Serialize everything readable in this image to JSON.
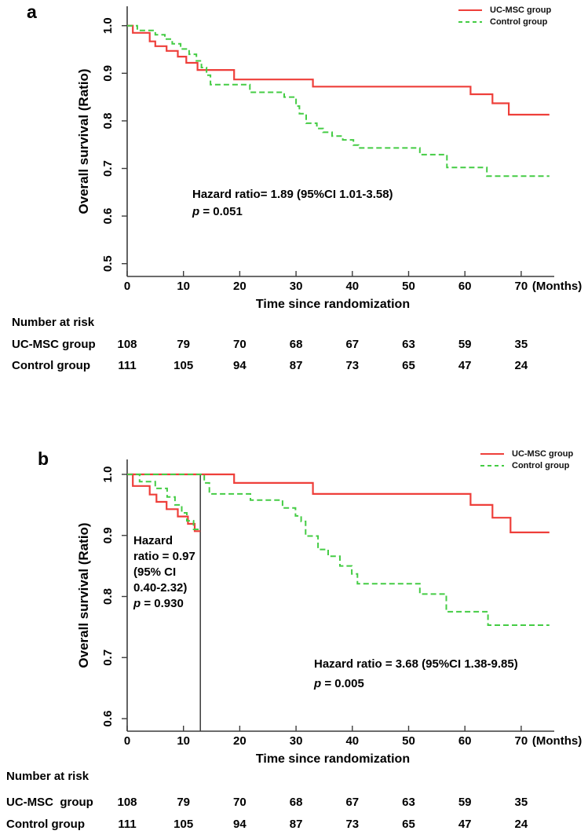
{
  "figure": {
    "background": "#ffffff",
    "red": "#ee3f3a",
    "green": "#44cc44",
    "axis_color": "#3c3c3c",
    "vline_color": "#3a3a3a",
    "text_color": "#000000"
  },
  "chart_data": [
    {
      "panel_label": "a",
      "type": "line",
      "subtype": "kaplan-meier-step",
      "xlabel": "Time since randomization",
      "xlabel_unit": "(Months)",
      "ylabel": "Overall survival (Ratio)",
      "xticks": [
        0,
        10,
        20,
        30,
        40,
        50,
        60,
        70
      ],
      "ytick_labels": [
        "1.0",
        "0.9",
        "0.8",
        "0.7",
        "0.6",
        "0.5"
      ],
      "xlim": [
        0,
        75.8
      ],
      "ylim": [
        0.47,
        1.04
      ],
      "grid": false,
      "legend": {
        "position": "top-right",
        "items": [
          {
            "label": "UC-MSC group",
            "style": "solid",
            "color": "#ee3f3a"
          },
          {
            "label": "Control group",
            "style": "dashed",
            "color": "#44cc44"
          }
        ]
      },
      "series": [
        {
          "name": "UC-MSC group",
          "style": "solid",
          "color": "#ee3f3a",
          "end": 75,
          "steps": [
            [
              0,
              1.0
            ],
            [
              1,
              0.985
            ],
            [
              4,
              0.967
            ],
            [
              5,
              0.957
            ],
            [
              7,
              0.947
            ],
            [
              9,
              0.935
            ],
            [
              10.5,
              0.922
            ],
            [
              12.5,
              0.907
            ],
            [
              19,
              0.887
            ],
            [
              33,
              0.872
            ],
            [
              61,
              0.856
            ],
            [
              64.9,
              0.837
            ],
            [
              67.8,
              0.813
            ]
          ]
        },
        {
          "name": "Control group",
          "style": "dashed",
          "color": "#44cc44",
          "end": 75,
          "steps": [
            [
              0,
              1.0
            ],
            [
              1.8,
              0.99
            ],
            [
              5,
              0.981
            ],
            [
              6.7,
              0.972
            ],
            [
              8,
              0.962
            ],
            [
              9.5,
              0.951
            ],
            [
              11,
              0.94
            ],
            [
              12.3,
              0.926
            ],
            [
              13.2,
              0.912
            ],
            [
              14.1,
              0.896
            ],
            [
              14.8,
              0.876
            ],
            [
              21.8,
              0.86
            ],
            [
              27.9,
              0.85
            ],
            [
              30,
              0.831
            ],
            [
              30.6,
              0.815
            ],
            [
              31.8,
              0.795
            ],
            [
              33.7,
              0.784
            ],
            [
              34.8,
              0.776
            ],
            [
              36.4,
              0.768
            ],
            [
              38.3,
              0.76
            ],
            [
              40.2,
              0.749
            ],
            [
              41.1,
              0.743
            ],
            [
              52,
              0.729
            ],
            [
              56.8,
              0.702
            ],
            [
              63.9,
              0.684
            ]
          ]
        }
      ],
      "annotations": [
        {
          "lines": [
            "Hazard ratio= 1.89 (95%CI 1.01-3.58)",
            "p = 0.051"
          ]
        }
      ],
      "risk_table": {
        "title": "Number at risk",
        "time_points": [
          0,
          10,
          20,
          30,
          40,
          50,
          60,
          70
        ],
        "rows": [
          {
            "label": "UC-MSC group",
            "counts": [
              108,
              79,
              70,
              68,
              67,
              63,
              59,
              35
            ]
          },
          {
            "label": "Control group",
            "counts": [
              111,
              105,
              94,
              87,
              73,
              65,
              47,
              24
            ]
          }
        ]
      }
    },
    {
      "panel_label": "b",
      "type": "line",
      "subtype": "kaplan-meier-step-landmark",
      "xlabel": "Time since randomization",
      "xlabel_unit": "(Months)",
      "ylabel": "Overall survival (Ratio)",
      "xticks": [
        0,
        10,
        20,
        30,
        40,
        50,
        60,
        70
      ],
      "ytick_labels": [
        "1.0",
        "0.9",
        "0.8",
        "0.7",
        "0.6"
      ],
      "xlim": [
        0,
        75.8
      ],
      "ylim": [
        0.58,
        1.03
      ],
      "grid": false,
      "vline_month": 13,
      "legend": {
        "position": "top-right",
        "items": [
          {
            "label": "UC-MSC group",
            "style": "solid",
            "color": "#ee3f3a"
          },
          {
            "label": "Control group",
            "style": "dashed",
            "color": "#44cc44"
          }
        ]
      },
      "series": [
        {
          "name": "UC-MSC group (0-13 months)",
          "style": "solid",
          "color": "#ee3f3a",
          "end": 13,
          "steps": [
            [
              0,
              1.0
            ],
            [
              1,
              0.981
            ],
            [
              4,
              0.967
            ],
            [
              5.2,
              0.955
            ],
            [
              7,
              0.943
            ],
            [
              9,
              0.931
            ],
            [
              10.8,
              0.919
            ],
            [
              12,
              0.907
            ]
          ]
        },
        {
          "name": "UC-MSC group (after 13 months)",
          "style": "solid",
          "color": "#ee3f3a",
          "end": 75,
          "steps": [
            [
              0,
              1.0
            ],
            [
              19,
              0.986
            ],
            [
              33,
              0.968
            ],
            [
              61,
              0.95
            ],
            [
              64.9,
              0.929
            ],
            [
              68.1,
              0.905
            ]
          ]
        },
        {
          "name": "Control group (0-13 months)",
          "style": "dashed",
          "color": "#44cc44",
          "end": 13,
          "steps": [
            [
              0,
              1.0
            ],
            [
              2.2,
              0.988
            ],
            [
              5,
              0.977
            ],
            [
              7.1,
              0.963
            ],
            [
              8.5,
              0.95
            ],
            [
              9.7,
              0.937
            ],
            [
              10.6,
              0.924
            ],
            [
              11.8,
              0.91
            ]
          ]
        },
        {
          "name": "Control group (after 13 months)",
          "style": "dashed",
          "color": "#44cc44",
          "end": 75,
          "steps": [
            [
              0,
              1.0
            ],
            [
              13.7,
              0.986
            ],
            [
              14.6,
              0.968
            ],
            [
              21.9,
              0.958
            ],
            [
              27.6,
              0.945
            ],
            [
              29.9,
              0.932
            ],
            [
              30.9,
              0.923
            ],
            [
              31.7,
              0.899
            ],
            [
              33.9,
              0.877
            ],
            [
              35.7,
              0.866
            ],
            [
              37.8,
              0.85
            ],
            [
              39.9,
              0.837
            ],
            [
              40.9,
              0.821
            ],
            [
              52,
              0.804
            ],
            [
              56.7,
              0.775
            ],
            [
              64.1,
              0.753
            ]
          ]
        }
      ],
      "annotations": [
        {
          "lines": [
            "Hazard",
            "ratio = 0.97",
            "(95% CI",
            "0.40-2.32)",
            "p = 0.930"
          ]
        },
        {
          "lines": [
            "Hazard ratio = 3.68 (95%CI 1.38-9.85)",
            "p = 0.005"
          ]
        }
      ],
      "risk_table": {
        "title": "Number at risk",
        "time_points": [
          0,
          10,
          20,
          30,
          40,
          50,
          60,
          70
        ],
        "rows": [
          {
            "label": "UC-MSC  group",
            "counts": [
              108,
              79,
              70,
              68,
              67,
              63,
              59,
              35
            ]
          },
          {
            "label": "Control group",
            "counts": [
              111,
              105,
              94,
              87,
              73,
              65,
              47,
              24
            ]
          }
        ]
      }
    }
  ]
}
